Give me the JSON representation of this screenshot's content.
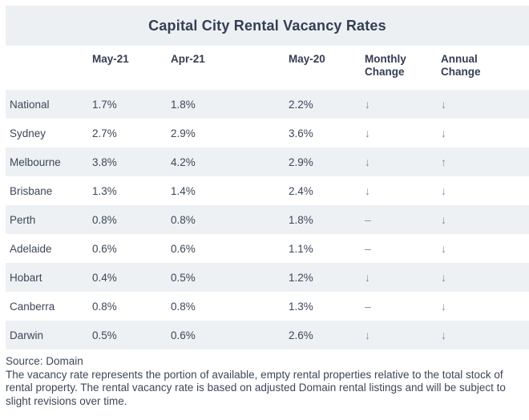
{
  "title": "Capital City Rental Vacancy Rates",
  "chart_data": {
    "type": "table",
    "title": "Capital City Rental Vacancy Rates",
    "columns": [
      "",
      "May-21",
      "Apr-21",
      "May-20",
      "Monthly Change",
      "Annual Change"
    ],
    "rows": [
      {
        "city": "National",
        "may21": "1.7%",
        "apr21": "1.8%",
        "may20": "2.2%",
        "monthly": "↓",
        "annual": "↓"
      },
      {
        "city": "Sydney",
        "may21": "2.7%",
        "apr21": "2.9%",
        "may20": "3.6%",
        "monthly": "↓",
        "annual": "↓"
      },
      {
        "city": "Melbourne",
        "may21": "3.8%",
        "apr21": "4.2%",
        "may20": "2.9%",
        "monthly": "↓",
        "annual": "↑"
      },
      {
        "city": "Brisbane",
        "may21": "1.3%",
        "apr21": "1.4%",
        "may20": "2.4%",
        "monthly": "↓",
        "annual": "↓"
      },
      {
        "city": "Perth",
        "may21": "0.8%",
        "apr21": "0.8%",
        "may20": "1.8%",
        "monthly": "–",
        "annual": "↓"
      },
      {
        "city": "Adelaide",
        "may21": "0.6%",
        "apr21": "0.6%",
        "may20": "1.1%",
        "monthly": "–",
        "annual": "↓"
      },
      {
        "city": "Hobart",
        "may21": "0.4%",
        "apr21": "0.5%",
        "may20": "1.2%",
        "monthly": "↓",
        "annual": "↓"
      },
      {
        "city": "Canberra",
        "may21": "0.8%",
        "apr21": "0.8%",
        "may20": "1.3%",
        "monthly": "–",
        "annual": "↓"
      },
      {
        "city": "Darwin",
        "may21": "0.5%",
        "apr21": "0.6%",
        "may20": "2.6%",
        "monthly": "↓",
        "annual": "↓"
      }
    ],
    "legend_position": "none",
    "grid": "off"
  },
  "footer": {
    "source": "Source: Domain",
    "note": "The vacancy rate represents the portion of available, empty rental properties relative to the total stock of rental property. The rental vacancy rate is based on adjusted Domain rental listings and will be subject to slight revisions over time."
  },
  "colors": {
    "band_bg": "#edf0f3",
    "row_stripe_bg": "#eef1f4",
    "heading_text": "#333e52",
    "body_text": "#3d4758",
    "arrow": "#878ba4"
  }
}
